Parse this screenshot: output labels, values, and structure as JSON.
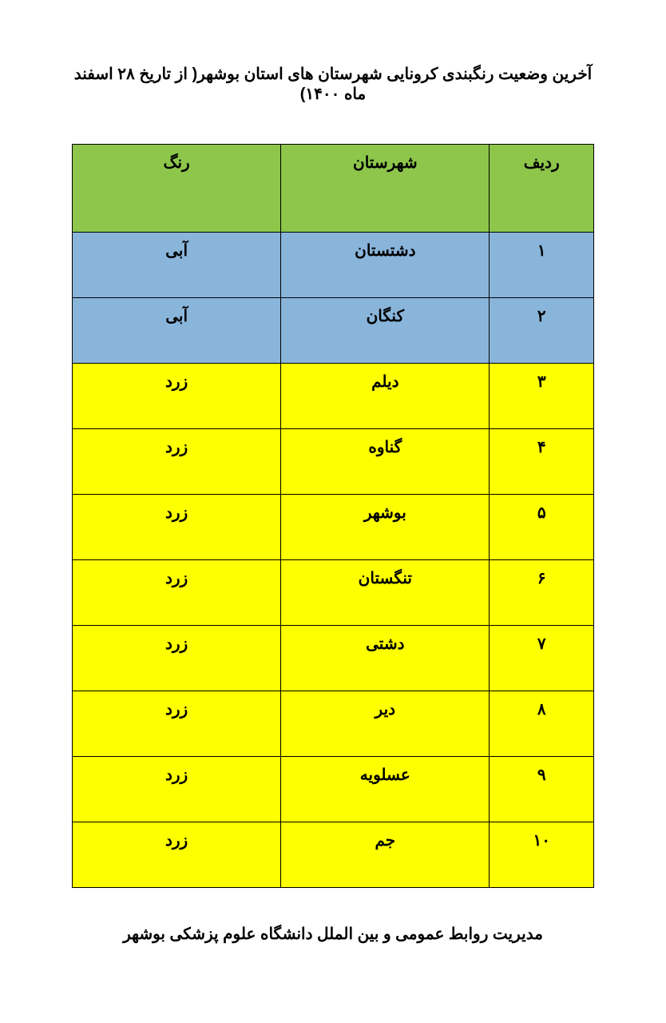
{
  "document": {
    "title": "آخرین وضعیت رنگبندی کرونایی شهرستان های استان بوشهر( از تاریخ ۲۸ اسفند ماه ۱۴۰۰)",
    "footer": "مدیریت روابط عمومی و بین الملل دانشگاه علوم پزشکی بوشهر"
  },
  "table": {
    "type": "table",
    "columns": [
      "ردیف",
      "شهرستان",
      "رنگ"
    ],
    "header_bg_color": "#8dc64a",
    "border_color": "#000000",
    "text_color": "#000000",
    "font_weight": "bold",
    "cell_fontsize": 20,
    "column_widths": [
      "20%",
      "40%",
      "40%"
    ],
    "rows": [
      {
        "number": "۱",
        "city": "دشتستان",
        "color": "آبی",
        "bg_color": "#8ab5db"
      },
      {
        "number": "۲",
        "city": "کنگان",
        "color": "آبی",
        "bg_color": "#8ab5db"
      },
      {
        "number": "۳",
        "city": "دیلم",
        "color": "زرد",
        "bg_color": "#feff00"
      },
      {
        "number": "۴",
        "city": "گناوه",
        "color": "زرد",
        "bg_color": "#feff00"
      },
      {
        "number": "۵",
        "city": "بوشهر",
        "color": "زرد",
        "bg_color": "#feff00"
      },
      {
        "number": "۶",
        "city": "تنگستان",
        "color": "زرد",
        "bg_color": "#feff00"
      },
      {
        "number": "۷",
        "city": "دشتی",
        "color": "زرد",
        "bg_color": "#feff00"
      },
      {
        "number": "۸",
        "city": "دیر",
        "color": "زرد",
        "bg_color": "#feff00"
      },
      {
        "number": "۹",
        "city": "عسلویه",
        "color": "زرد",
        "bg_color": "#feff00"
      },
      {
        "number": "۱۰",
        "city": "جم",
        "color": "زرد",
        "bg_color": "#feff00"
      }
    ]
  }
}
